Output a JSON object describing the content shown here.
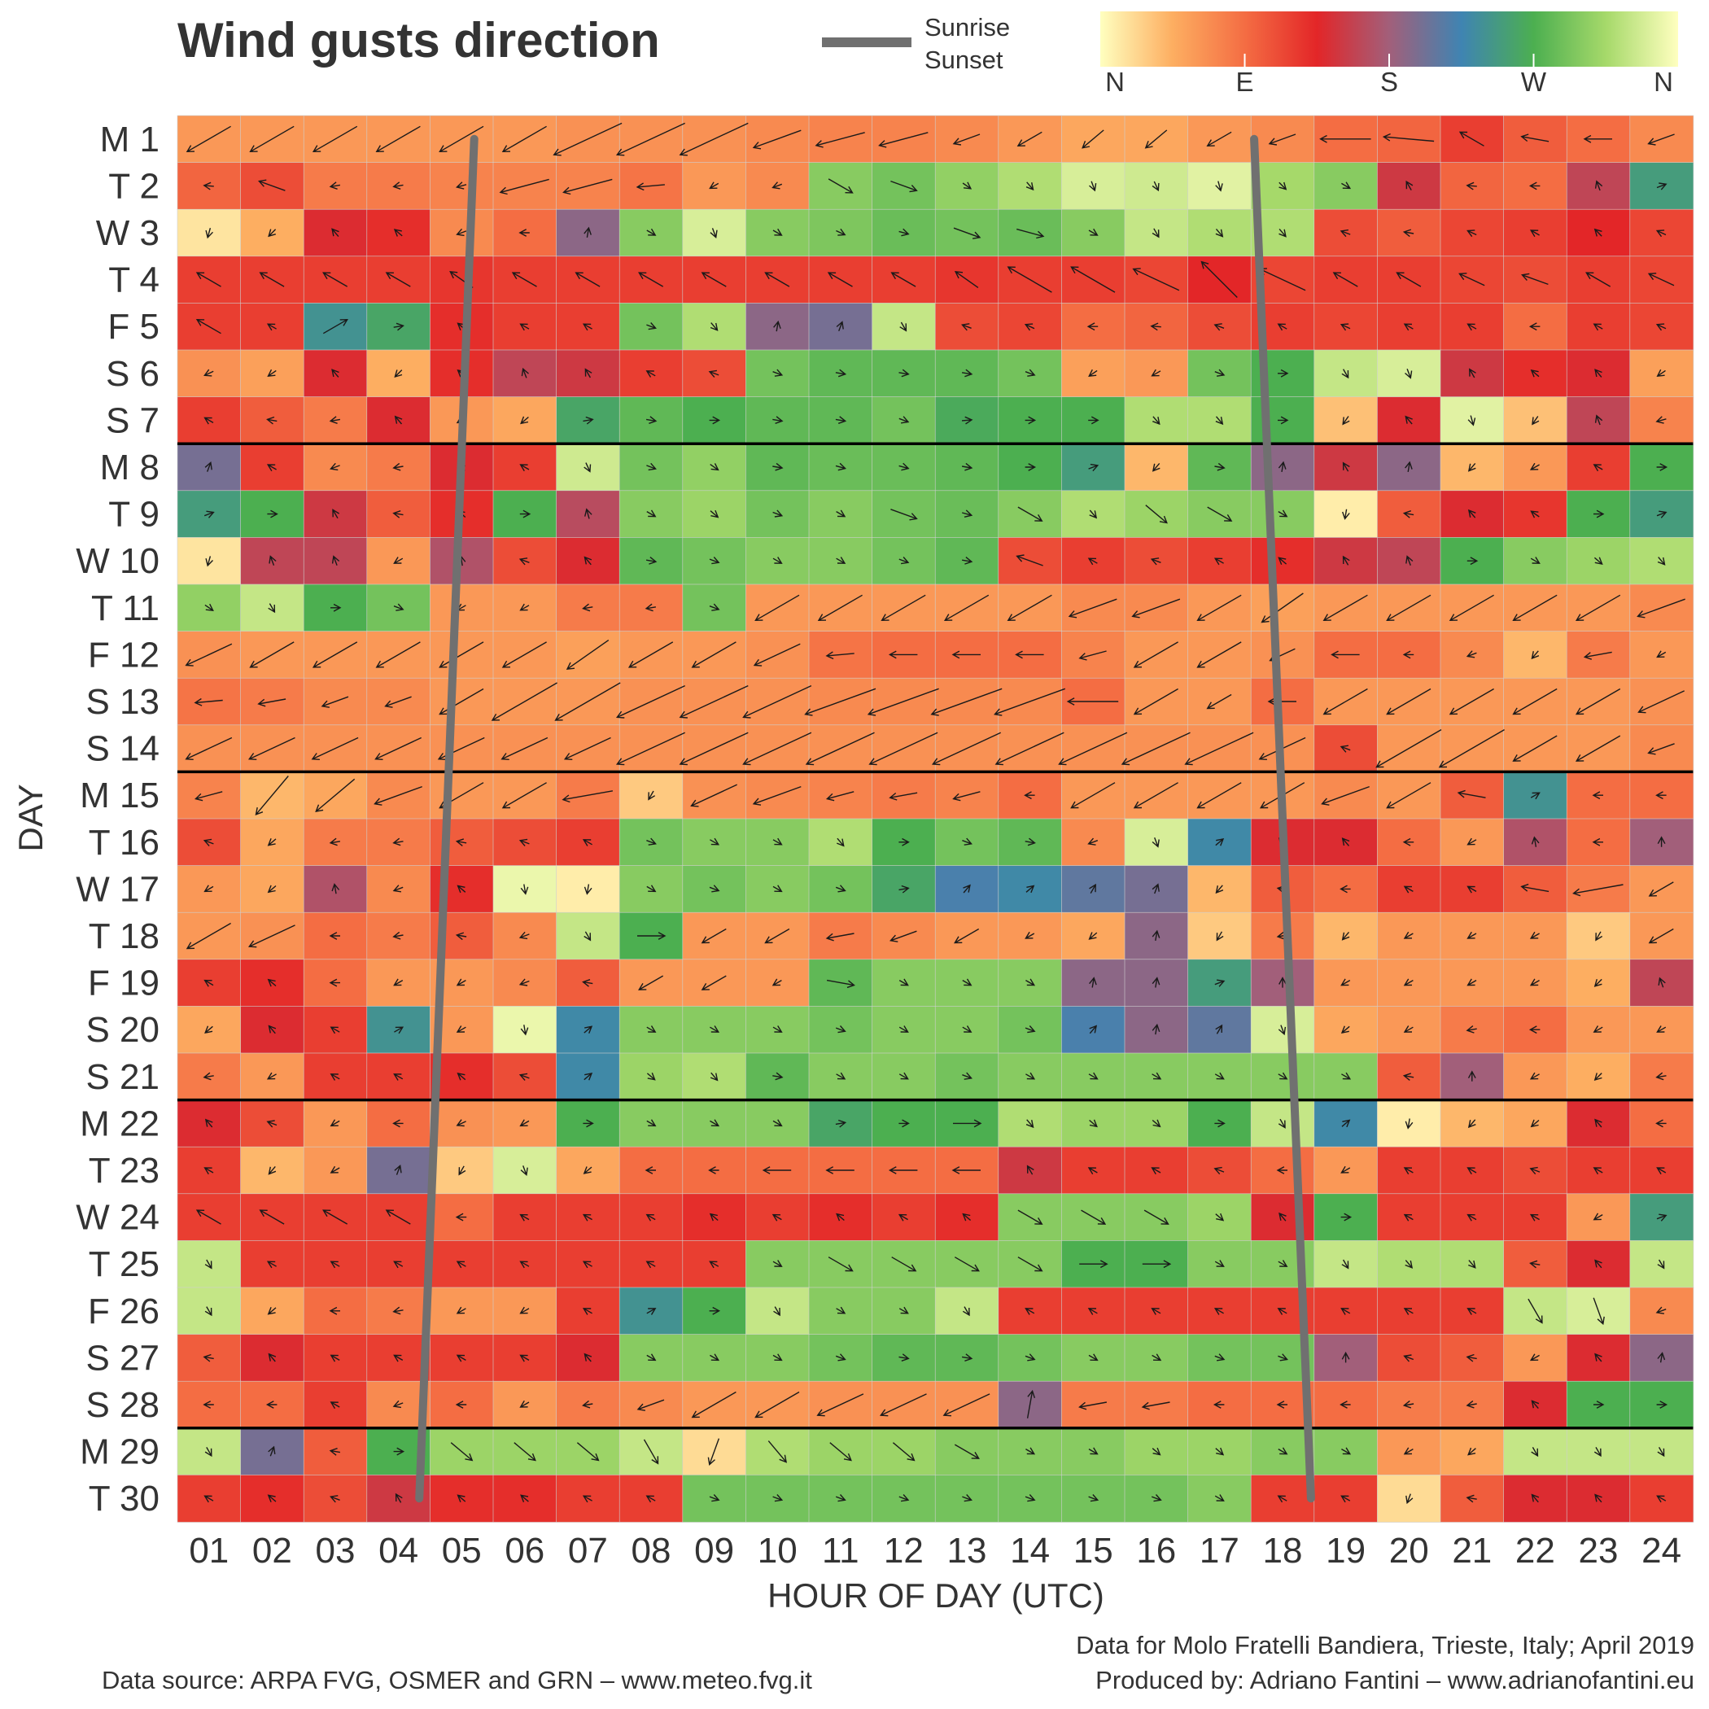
{
  "chart_data": {
    "type": "heatmap",
    "title": "Wind gusts direction",
    "xlabel": "HOUR OF DAY (UTC)",
    "ylabel": "DAY",
    "hours": [
      "01",
      "02",
      "03",
      "04",
      "05",
      "06",
      "07",
      "08",
      "09",
      "10",
      "11",
      "12",
      "13",
      "14",
      "15",
      "16",
      "17",
      "18",
      "19",
      "20",
      "21",
      "22",
      "23",
      "24"
    ],
    "days": [
      "M 1",
      "T 2",
      "W 3",
      "T 4",
      "F 5",
      "S 6",
      "S 7",
      "M 8",
      "T 9",
      "W 10",
      "T 11",
      "F 12",
      "S 13",
      "S 14",
      "M 15",
      "T 16",
      "W 17",
      "T 18",
      "F 19",
      "S 20",
      "S 21",
      "M 22",
      "T 23",
      "W 24",
      "T 25",
      "F 26",
      "S 27",
      "S 28",
      "M 29",
      "T 30"
    ],
    "directions_deg": [
      [
        60,
        60,
        60,
        60,
        60,
        60,
        65,
        65,
        65,
        70,
        75,
        75,
        70,
        60,
        50,
        50,
        60,
        70,
        90,
        95,
        120,
        100,
        90,
        70
      ],
      [
        95,
        110,
        80,
        80,
        75,
        75,
        75,
        85,
        60,
        70,
        300,
        290,
        305,
        320,
        340,
        335,
        345,
        315,
        300,
        150,
        95,
        90,
        160,
        250
      ],
      [
        15,
        45,
        140,
        130,
        70,
        90,
        190,
        300,
        340,
        300,
        295,
        285,
        290,
        285,
        300,
        330,
        320,
        320,
        110,
        100,
        115,
        120,
        135,
        115
      ],
      [
        120,
        120,
        120,
        120,
        125,
        120,
        120,
        120,
        120,
        120,
        120,
        120,
        125,
        120,
        120,
        115,
        135,
        115,
        120,
        120,
        115,
        110,
        120,
        115
      ],
      [
        120,
        120,
        240,
        260,
        130,
        120,
        120,
        290,
        320,
        190,
        200,
        330,
        110,
        115,
        90,
        95,
        110,
        120,
        115,
        120,
        120,
        90,
        120,
        115
      ],
      [
        65,
        55,
        140,
        45,
        130,
        160,
        150,
        120,
        110,
        290,
        280,
        280,
        280,
        290,
        55,
        60,
        290,
        270,
        330,
        340,
        150,
        130,
        140,
        55
      ],
      [
        120,
        100,
        80,
        140,
        60,
        50,
        260,
        280,
        270,
        280,
        280,
        290,
        265,
        270,
        270,
        320,
        320,
        270,
        35,
        140,
        345,
        35,
        160,
        75
      ],
      [
        200,
        120,
        70,
        80,
        140,
        120,
        335,
        290,
        305,
        280,
        285,
        285,
        280,
        270,
        250,
        40,
        280,
        190,
        150,
        190,
        40,
        60,
        120,
        270
      ],
      [
        250,
        270,
        150,
        100,
        130,
        270,
        165,
        300,
        310,
        290,
        300,
        290,
        285,
        300,
        320,
        310,
        300,
        300,
        10,
        100,
        140,
        125,
        270,
        250
      ],
      [
        15,
        160,
        160,
        60,
        170,
        110,
        140,
        280,
        290,
        300,
        300,
        290,
        280,
        110,
        120,
        110,
        120,
        130,
        150,
        160,
        270,
        300,
        310,
        320
      ],
      [
        305,
        330,
        270,
        290,
        60,
        60,
        80,
        80,
        290,
        60,
        60,
        60,
        60,
        60,
        70,
        70,
        60,
        55,
        60,
        60,
        60,
        60,
        60,
        70
      ],
      [
        65,
        60,
        60,
        60,
        60,
        60,
        55,
        60,
        60,
        65,
        85,
        90,
        90,
        90,
        75,
        60,
        60,
        65,
        90,
        90,
        70,
        40,
        80,
        60
      ],
      [
        85,
        80,
        70,
        70,
        60,
        60,
        60,
        65,
        65,
        65,
        70,
        70,
        70,
        70,
        90,
        60,
        60,
        90,
        60,
        60,
        60,
        60,
        60,
        65
      ],
      [
        65,
        65,
        65,
        65,
        65,
        65,
        65,
        65,
        65,
        65,
        65,
        65,
        65,
        65,
        65,
        65,
        65,
        65,
        110,
        60,
        60,
        60,
        60,
        70
      ],
      [
        75,
        40,
        50,
        70,
        60,
        60,
        80,
        30,
        65,
        70,
        75,
        80,
        75,
        90,
        60,
        60,
        60,
        60,
        70,
        60,
        100,
        240,
        90,
        90
      ],
      [
        110,
        50,
        80,
        80,
        100,
        110,
        120,
        290,
        300,
        300,
        320,
        270,
        290,
        280,
        70,
        340,
        230,
        140,
        140,
        90,
        60,
        170,
        90,
        180
      ],
      [
        60,
        50,
        170,
        70,
        130,
        350,
        10,
        300,
        290,
        300,
        290,
        260,
        220,
        230,
        210,
        200,
        40,
        100,
        90,
        120,
        120,
        100,
        80,
        60
      ],
      [
        60,
        65,
        90,
        80,
        100,
        70,
        330,
        270,
        60,
        60,
        80,
        70,
        60,
        60,
        50,
        190,
        30,
        80,
        40,
        60,
        60,
        60,
        30,
        60
      ],
      [
        120,
        130,
        90,
        60,
        60,
        70,
        100,
        60,
        60,
        60,
        280,
        300,
        300,
        300,
        190,
        190,
        250,
        180,
        60,
        60,
        60,
        60,
        45,
        160
      ],
      [
        50,
        140,
        120,
        240,
        60,
        350,
        230,
        300,
        300,
        300,
        290,
        300,
        300,
        290,
        220,
        190,
        210,
        340,
        50,
        60,
        80,
        90,
        60,
        60
      ],
      [
        80,
        60,
        120,
        120,
        130,
        110,
        230,
        310,
        320,
        280,
        300,
        300,
        290,
        300,
        300,
        300,
        300,
        300,
        300,
        100,
        180,
        60,
        45,
        80
      ],
      [
        140,
        110,
        60,
        90,
        65,
        60,
        270,
        300,
        300,
        300,
        260,
        270,
        270,
        320,
        310,
        310,
        270,
        330,
        230,
        10,
        40,
        50,
        140,
        90
      ],
      [
        120,
        40,
        60,
        200,
        30,
        340,
        50,
        90,
        90,
        90,
        90,
        90,
        90,
        150,
        120,
        120,
        110,
        90,
        60,
        120,
        120,
        110,
        120,
        120
      ],
      [
        120,
        120,
        120,
        120,
        90,
        120,
        120,
        120,
        130,
        120,
        130,
        120,
        130,
        300,
        300,
        300,
        310,
        140,
        270,
        120,
        120,
        120,
        60,
        250
      ],
      [
        330,
        120,
        120,
        120,
        120,
        120,
        120,
        120,
        120,
        300,
        300,
        300,
        300,
        300,
        270,
        270,
        300,
        300,
        330,
        320,
        320,
        100,
        140,
        330
      ],
      [
        330,
        50,
        90,
        80,
        60,
        60,
        120,
        240,
        270,
        330,
        300,
        300,
        330,
        120,
        120,
        120,
        120,
        120,
        120,
        120,
        120,
        330,
        340,
        70
      ],
      [
        100,
        140,
        120,
        120,
        120,
        120,
        140,
        300,
        300,
        300,
        290,
        280,
        280,
        290,
        300,
        300,
        290,
        290,
        180,
        110,
        100,
        60,
        140,
        190
      ],
      [
        90,
        90,
        120,
        70,
        90,
        60,
        80,
        70,
        60,
        60,
        65,
        65,
        65,
        190,
        80,
        80,
        90,
        90,
        90,
        80,
        80,
        140,
        270,
        270
      ],
      [
        330,
        200,
        100,
        270,
        310,
        310,
        310,
        330,
        20,
        320,
        310,
        310,
        300,
        300,
        300,
        310,
        310,
        300,
        300,
        60,
        50,
        330,
        330,
        330
      ],
      [
        120,
        130,
        110,
        150,
        130,
        130,
        120,
        120,
        290,
        290,
        290,
        290,
        290,
        290,
        290,
        290,
        300,
        120,
        120,
        20,
        100,
        140,
        140,
        120
      ]
    ],
    "speed": [
      [
        2,
        2,
        2,
        2,
        2,
        2,
        3,
        3,
        3,
        2,
        2,
        2,
        1,
        1,
        1,
        1,
        1,
        1,
        2,
        2,
        1,
        1,
        1,
        1
      ],
      [
        0,
        1,
        0,
        0,
        0,
        2,
        2,
        1,
        0,
        0,
        1,
        1,
        0,
        0,
        0,
        0,
        0,
        0,
        0,
        0,
        0,
        0,
        0,
        0
      ],
      [
        0,
        0,
        0,
        0,
        0,
        0,
        0,
        0,
        0,
        0,
        0,
        0,
        1,
        1,
        0,
        0,
        0,
        0,
        0,
        0,
        0,
        0,
        0,
        0
      ],
      [
        1,
        1,
        1,
        1,
        1,
        1,
        1,
        1,
        1,
        1,
        1,
        1,
        1,
        2,
        2,
        2,
        2,
        2,
        1,
        1,
        1,
        1,
        1,
        1
      ],
      [
        1,
        0,
        1,
        0,
        0,
        0,
        0,
        0,
        0,
        0,
        0,
        0,
        0,
        0,
        0,
        0,
        0,
        0,
        0,
        0,
        0,
        0,
        0,
        0
      ],
      [
        0,
        0,
        0,
        0,
        0,
        0,
        0,
        0,
        0,
        0,
        0,
        0,
        0,
        0,
        0,
        0,
        0,
        0,
        0,
        0,
        0,
        0,
        0,
        0
      ],
      [
        0,
        0,
        0,
        0,
        0,
        0,
        0,
        0,
        0,
        0,
        0,
        0,
        0,
        0,
        0,
        0,
        0,
        0,
        0,
        0,
        0,
        0,
        0,
        0
      ],
      [
        0,
        0,
        0,
        0,
        0,
        0,
        0,
        0,
        0,
        0,
        0,
        0,
        0,
        0,
        0,
        0,
        0,
        0,
        0,
        0,
        0,
        0,
        0,
        0
      ],
      [
        0,
        0,
        0,
        0,
        0,
        0,
        0,
        0,
        0,
        0,
        0,
        1,
        0,
        1,
        0,
        1,
        1,
        0,
        0,
        0,
        0,
        0,
        0,
        0
      ],
      [
        0,
        0,
        0,
        0,
        0,
        0,
        0,
        0,
        0,
        0,
        0,
        0,
        0,
        1,
        0,
        0,
        0,
        0,
        0,
        0,
        0,
        0,
        0,
        0
      ],
      [
        0,
        0,
        0,
        0,
        0,
        0,
        0,
        0,
        0,
        2,
        2,
        2,
        2,
        2,
        2,
        2,
        2,
        2,
        2,
        2,
        2,
        2,
        2,
        2
      ],
      [
        2,
        2,
        2,
        2,
        2,
        2,
        2,
        2,
        2,
        2,
        1,
        1,
        1,
        1,
        1,
        2,
        2,
        1,
        1,
        0,
        0,
        0,
        1,
        0
      ],
      [
        1,
        1,
        1,
        1,
        2,
        3,
        3,
        3,
        3,
        3,
        3,
        3,
        3,
        3,
        2,
        2,
        1,
        1,
        2,
        2,
        2,
        2,
        2,
        2
      ],
      [
        2,
        2,
        2,
        2,
        2,
        2,
        2,
        3,
        3,
        3,
        3,
        3,
        3,
        3,
        3,
        3,
        3,
        2,
        0,
        3,
        3,
        2,
        2,
        1
      ],
      [
        1,
        2,
        2,
        2,
        2,
        2,
        2,
        0,
        2,
        2,
        1,
        1,
        1,
        0,
        2,
        2,
        2,
        2,
        2,
        2,
        1,
        0,
        0,
        0
      ],
      [
        0,
        0,
        0,
        0,
        0,
        0,
        0,
        0,
        0,
        0,
        0,
        0,
        0,
        0,
        0,
        0,
        0,
        0,
        0,
        0,
        0,
        0,
        0,
        0
      ],
      [
        0,
        0,
        0,
        0,
        0,
        0,
        0,
        0,
        0,
        0,
        0,
        0,
        0,
        0,
        0,
        0,
        0,
        0,
        0,
        0,
        0,
        1,
        2,
        1
      ],
      [
        2,
        2,
        0,
        0,
        0,
        0,
        0,
        1,
        1,
        1,
        1,
        1,
        1,
        0,
        0,
        0,
        0,
        0,
        0,
        0,
        0,
        0,
        0,
        1
      ],
      [
        0,
        0,
        0,
        0,
        0,
        0,
        0,
        1,
        1,
        0,
        1,
        0,
        0,
        0,
        0,
        0,
        0,
        0,
        0,
        0,
        0,
        0,
        0,
        0
      ],
      [
        0,
        0,
        0,
        0,
        0,
        0,
        0,
        0,
        0,
        0,
        0,
        0,
        0,
        0,
        0,
        0,
        0,
        0,
        0,
        0,
        0,
        0,
        0,
        0
      ],
      [
        0,
        0,
        0,
        0,
        0,
        0,
        0,
        0,
        0,
        0,
        0,
        0,
        0,
        0,
        0,
        0,
        0,
        0,
        0,
        0,
        0,
        0,
        0,
        0
      ],
      [
        0,
        0,
        0,
        0,
        0,
        0,
        0,
        0,
        0,
        0,
        0,
        0,
        1,
        0,
        0,
        0,
        0,
        0,
        0,
        0,
        0,
        0,
        0,
        0
      ],
      [
        0,
        0,
        0,
        0,
        0,
        0,
        0,
        0,
        0,
        1,
        1,
        1,
        1,
        0,
        0,
        0,
        0,
        0,
        0,
        0,
        0,
        0,
        0,
        0
      ],
      [
        1,
        1,
        1,
        1,
        0,
        0,
        0,
        0,
        0,
        0,
        0,
        0,
        0,
        1,
        1,
        1,
        0,
        0,
        0,
        0,
        0,
        0,
        0,
        0
      ],
      [
        0,
        0,
        0,
        0,
        0,
        0,
        0,
        0,
        0,
        0,
        1,
        1,
        1,
        1,
        1,
        1,
        0,
        0,
        0,
        0,
        0,
        0,
        0,
        0
      ],
      [
        0,
        0,
        0,
        0,
        0,
        0,
        0,
        0,
        0,
        0,
        0,
        0,
        0,
        0,
        0,
        0,
        0,
        0,
        0,
        0,
        0,
        1,
        1,
        0
      ],
      [
        0,
        0,
        0,
        0,
        0,
        0,
        0,
        0,
        0,
        0,
        0,
        0,
        0,
        0,
        0,
        0,
        0,
        0,
        0,
        0,
        0,
        0,
        0,
        0
      ],
      [
        0,
        0,
        0,
        0,
        0,
        0,
        0,
        1,
        2,
        2,
        2,
        2,
        2,
        1,
        1,
        1,
        0,
        0,
        0,
        0,
        0,
        0,
        0,
        0
      ],
      [
        0,
        0,
        0,
        0,
        1,
        1,
        1,
        1,
        1,
        1,
        1,
        1,
        1,
        0,
        0,
        0,
        0,
        0,
        0,
        0,
        0,
        0,
        0,
        0
      ],
      [
        0,
        0,
        0,
        0,
        0,
        0,
        0,
        0,
        0,
        0,
        0,
        0,
        0,
        0,
        0,
        0,
        0,
        0,
        0,
        0,
        0,
        0,
        0,
        0
      ]
    ],
    "sunrise_hour": [
      5.2,
      4.33
    ],
    "sunset_hour": [
      17.55,
      18.45
    ],
    "week_separators_after_day": [
      7,
      14,
      21,
      28
    ],
    "legend": {
      "line_label_1": "Sunrise",
      "line_label_2": "Sunset",
      "line_color": "#707070",
      "scale_labels": [
        "N",
        "E",
        "S",
        "W",
        "N"
      ],
      "scale_colors": [
        "#FFFFBF",
        "#FDAE61",
        "#F46D43",
        "#E32628",
        "#A25F7A",
        "#3F84B2",
        "#4CAF50",
        "#A6D96A",
        "#FFFFBF"
      ]
    },
    "footer_left": "Data source: ARPA FVG, OSMER and GRN – www.meteo.fvg.it",
    "footer_right_1": "Data for Molo Fratelli Bandiera, Trieste, Italy; April 2019",
    "footer_right_2": "Produced by: Adriano Fantini  – www.adrianofantini.eu"
  }
}
